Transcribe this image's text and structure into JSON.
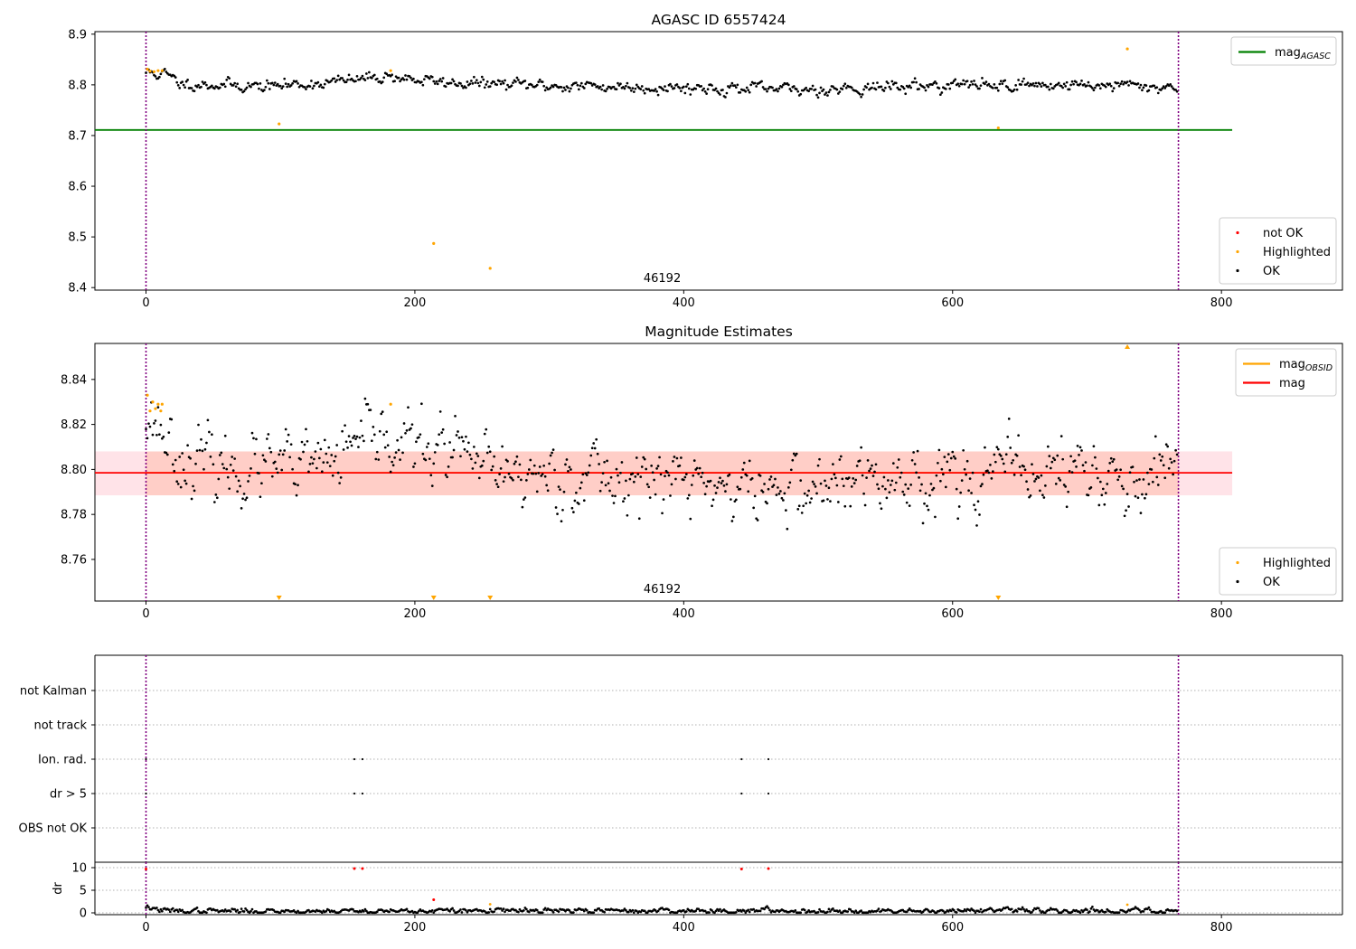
{
  "colors": {
    "ok": "#000000",
    "highlighted": "#ffa500",
    "not_ok": "#ff0000",
    "agasc_line": "#008000",
    "mag_line": "#ff0000",
    "obsid_line": "#ffa500",
    "band_pink": "#ffc0cb",
    "band_orange": "#ffa07a",
    "boundary": "#800080",
    "grid": "#b0b0b0"
  },
  "chart_data": [
    {
      "id": "agasc",
      "type": "scatter",
      "title": "AGASC ID 6557424",
      "obsid_label": "46192",
      "obsid_label_x": 384,
      "xlim": [
        -38,
        890
      ],
      "ylim": [
        8.395,
        8.905
      ],
      "xticks": [
        0,
        200,
        400,
        600,
        800
      ],
      "yticks": [
        8.4,
        8.5,
        8.6,
        8.7,
        8.8,
        8.9
      ],
      "ytick_labels": [
        "8.4",
        "8.5",
        "8.6",
        "8.7",
        "8.8",
        "8.9"
      ],
      "boundaries": [
        0,
        768
      ],
      "hlines": [
        {
          "name": "mag_AGASC",
          "y": 8.711,
          "x0": -38,
          "x1": 808,
          "color": "#008000"
        }
      ],
      "ok_model": {
        "n": 768,
        "points": [
          [
            0,
            8.825
          ],
          [
            15,
            8.82
          ],
          [
            25,
            8.803
          ],
          [
            90,
            8.797
          ],
          [
            120,
            8.802
          ],
          [
            150,
            8.808
          ],
          [
            180,
            8.818
          ],
          [
            200,
            8.81
          ],
          [
            220,
            8.805
          ],
          [
            300,
            8.798
          ],
          [
            400,
            8.795
          ],
          [
            480,
            8.79
          ],
          [
            600,
            8.8
          ],
          [
            700,
            8.8
          ],
          [
            768,
            8.795
          ]
        ],
        "noise": 0.006,
        "seed": 11
      },
      "highlighted": [
        [
          1,
          8.831
        ],
        [
          3,
          8.827
        ],
        [
          6,
          8.826
        ],
        [
          9,
          8.828
        ],
        [
          12,
          8.828
        ],
        [
          99,
          8.723
        ],
        [
          182,
          8.828
        ],
        [
          214,
          8.487
        ],
        [
          256,
          8.438
        ],
        [
          634,
          8.715
        ],
        [
          730,
          8.871
        ]
      ],
      "not_ok": [],
      "legends": [
        {
          "position": "upper-right",
          "items": [
            {
              "marker": "line",
              "color": "#008000",
              "label": "mag",
              "sub": "AGASC"
            }
          ]
        },
        {
          "position": "lower-right",
          "items": [
            {
              "marker": "dot",
              "color": "#ff0000",
              "label": "not OK",
              "sub": ""
            },
            {
              "marker": "dot",
              "color": "#ffa500",
              "label": "Highlighted",
              "sub": ""
            },
            {
              "marker": "dot",
              "color": "#000000",
              "label": "OK",
              "sub": ""
            }
          ]
        }
      ]
    },
    {
      "id": "mag",
      "type": "scatter",
      "title": "Magnitude Estimates",
      "obsid_label": "46192",
      "obsid_label_x": 384,
      "xlim": [
        -38,
        890
      ],
      "ylim": [
        8.7415,
        8.856
      ],
      "xticks": [
        0,
        200,
        400,
        600,
        800
      ],
      "yticks": [
        8.76,
        8.78,
        8.8,
        8.82,
        8.84
      ],
      "ytick_labels": [
        "8.76",
        "8.78",
        "8.80",
        "8.82",
        "8.84"
      ],
      "boundaries": [
        0,
        768
      ],
      "bands": [
        {
          "x0": -38,
          "x1": 808,
          "y0": 8.7885,
          "y1": 8.808,
          "color": "#ffc0cb",
          "opacity": 0.45
        },
        {
          "x0": 0,
          "x1": 768,
          "y0": 8.7885,
          "y1": 8.808,
          "color": "#ffa07a",
          "opacity": 0.3
        }
      ],
      "hlines": [
        {
          "name": "mag_OBSID",
          "y": 8.7985,
          "x0": 0,
          "x1": 768,
          "color": "#ffa500"
        },
        {
          "name": "mag",
          "y": 8.7985,
          "x0": -38,
          "x1": 808,
          "color": "#ff0000"
        }
      ],
      "ok_model": {
        "n": 768,
        "points": [
          [
            0,
            8.825
          ],
          [
            10,
            8.82
          ],
          [
            20,
            8.81
          ],
          [
            30,
            8.804
          ],
          [
            60,
            8.8
          ],
          [
            120,
            8.8
          ],
          [
            150,
            8.807
          ],
          [
            180,
            8.815
          ],
          [
            200,
            8.81
          ],
          [
            230,
            8.808
          ],
          [
            260,
            8.797
          ],
          [
            300,
            8.798
          ],
          [
            400,
            8.795
          ],
          [
            460,
            8.79
          ],
          [
            520,
            8.793
          ],
          [
            600,
            8.798
          ],
          [
            700,
            8.8
          ],
          [
            740,
            8.79
          ],
          [
            768,
            8.797
          ]
        ],
        "noise": 0.0075,
        "seed": 23
      },
      "highlighted": [
        [
          1,
          8.833
        ],
        [
          3,
          8.826
        ],
        [
          5,
          8.83
        ],
        [
          7,
          8.827
        ],
        [
          9,
          8.829
        ],
        [
          11,
          8.826
        ],
        [
          12,
          8.829
        ],
        [
          182,
          8.829
        ]
      ],
      "highlighted_off": [
        [
          99,
          "low"
        ],
        [
          214,
          "low"
        ],
        [
          256,
          "low"
        ],
        [
          634,
          "low"
        ],
        [
          730,
          "high"
        ]
      ],
      "not_ok": [],
      "legends": [
        {
          "position": "upper-right",
          "items": [
            {
              "marker": "line",
              "color": "#ffa500",
              "label": "mag",
              "sub": "OBSID"
            },
            {
              "marker": "line",
              "color": "#ff0000",
              "label": "mag",
              "sub": ""
            }
          ]
        },
        {
          "position": "lower-right",
          "items": [
            {
              "marker": "dot",
              "color": "#ffa500",
              "label": "Highlighted",
              "sub": ""
            },
            {
              "marker": "dot",
              "color": "#000000",
              "label": "OK",
              "sub": ""
            }
          ]
        }
      ]
    },
    {
      "id": "flags",
      "type": "scatter",
      "xlim": [
        -38,
        890
      ],
      "categories": [
        "not Kalman",
        "not track",
        "Ion. rad.",
        "dr > 5",
        "OBS not OK"
      ],
      "boundaries": [
        0,
        768
      ],
      "flag_points": [
        {
          "category": "Ion. rad.",
          "x": [
            0,
            155,
            161,
            443,
            463
          ]
        },
        {
          "category": "dr > 5",
          "x": [
            0,
            155,
            161,
            443,
            463
          ]
        }
      ]
    },
    {
      "id": "dr",
      "type": "scatter",
      "ylabel": "dr",
      "xlim": [
        -38,
        890
      ],
      "ylim": [
        -0.4,
        11.2
      ],
      "xticks": [
        0,
        200,
        400,
        600,
        800
      ],
      "yticks": [
        0,
        5,
        10
      ],
      "ytick_labels": [
        "0",
        "5",
        "10"
      ],
      "boundaries": [
        0,
        768
      ],
      "ok_model": {
        "n": 768,
        "points": [
          [
            0,
            1.4
          ],
          [
            6,
            0.9
          ],
          [
            15,
            0.4
          ],
          [
            768,
            0.5
          ]
        ],
        "noise": 0.3,
        "seed": 37
      },
      "not_ok": [
        [
          0,
          9.7
        ],
        [
          155,
          9.8
        ],
        [
          161,
          9.8
        ],
        [
          443,
          9.7
        ],
        [
          463,
          9.8
        ],
        [
          214,
          2.9
        ]
      ],
      "highlighted": [
        [
          256,
          1.9
        ],
        [
          730,
          1.8
        ]
      ]
    }
  ]
}
